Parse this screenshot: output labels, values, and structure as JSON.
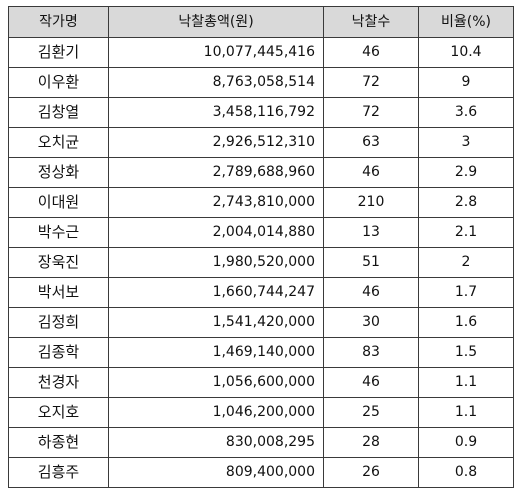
{
  "table": {
    "headers": {
      "artist": "작가명",
      "total": "낙찰총액(원)",
      "count": "낙찰수",
      "ratio": "비율(%)"
    },
    "rows": [
      {
        "artist": "김환기",
        "total": "10,077,445,416",
        "count": "46",
        "ratio": "10.4"
      },
      {
        "artist": "이우환",
        "total": "8,763,058,514",
        "count": "72",
        "ratio": "9"
      },
      {
        "artist": "김창열",
        "total": "3,458,116,792",
        "count": "72",
        "ratio": "3.6"
      },
      {
        "artist": "오치균",
        "total": "2,926,512,310",
        "count": "63",
        "ratio": "3"
      },
      {
        "artist": "정상화",
        "total": "2,789,688,960",
        "count": "46",
        "ratio": "2.9"
      },
      {
        "artist": "이대원",
        "total": "2,743,810,000",
        "count": "210",
        "ratio": "2.8"
      },
      {
        "artist": "박수근",
        "total": "2,004,014,880",
        "count": "13",
        "ratio": "2.1"
      },
      {
        "artist": "장욱진",
        "total": "1,980,520,000",
        "count": "51",
        "ratio": "2"
      },
      {
        "artist": "박서보",
        "total": "1,660,744,247",
        "count": "46",
        "ratio": "1.7"
      },
      {
        "artist": "김정희",
        "total": "1,541,420,000",
        "count": "30",
        "ratio": "1.6"
      },
      {
        "artist": "김종학",
        "total": "1,469,140,000",
        "count": "83",
        "ratio": "1.5"
      },
      {
        "artist": "천경자",
        "total": "1,056,600,000",
        "count": "46",
        "ratio": "1.1"
      },
      {
        "artist": "오지호",
        "total": "1,046,200,000",
        "count": "25",
        "ratio": "1.1"
      },
      {
        "artist": "하종현",
        "total": "830,008,295",
        "count": "28",
        "ratio": "0.9"
      },
      {
        "artist": "김흥주",
        "total": "809,400,000",
        "count": "26",
        "ratio": "0.8"
      }
    ]
  },
  "colors": {
    "header_bg": "#d9d9d9",
    "border": "#3a3a3a",
    "text": "#111111"
  }
}
